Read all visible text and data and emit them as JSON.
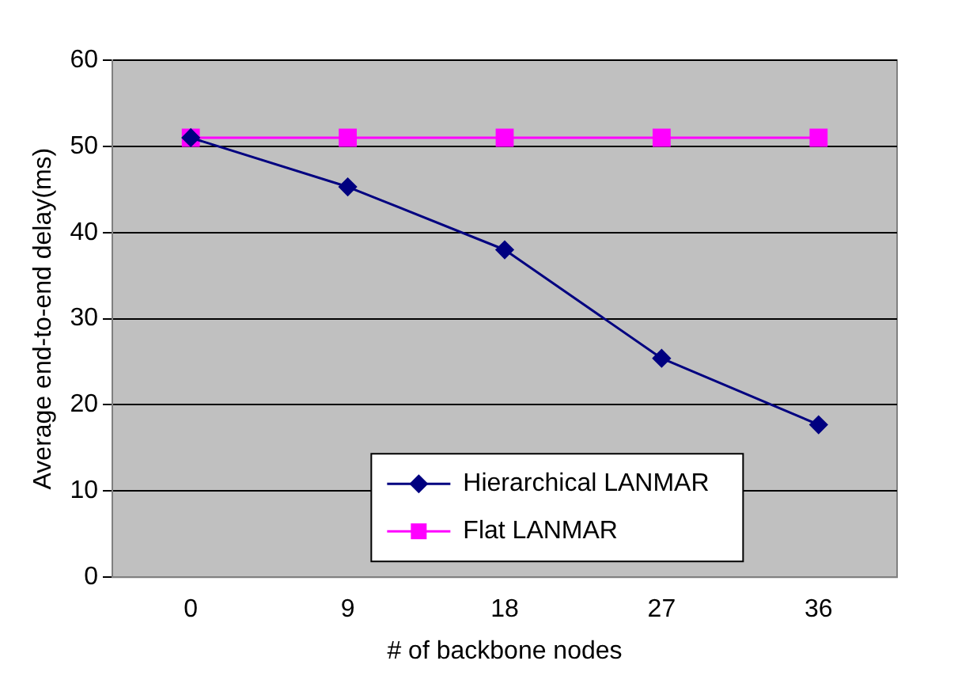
{
  "chart_data": {
    "type": "line",
    "xlabel": "# of backbone nodes",
    "ylabel": "Average end-to-end delay(ms)",
    "categories": [
      "0",
      "9",
      "18",
      "27",
      "36"
    ],
    "series": [
      {
        "name": "Hierarchical LANMAR",
        "color": "#000080",
        "values": [
          51,
          45.3,
          38,
          25.4,
          17.7
        ],
        "marker": "diamond"
      },
      {
        "name": "Flat LANMAR",
        "color": "#ff00ff",
        "values": [
          51,
          51,
          51,
          51,
          51
        ],
        "marker": "square"
      }
    ],
    "ylim": [
      0,
      60
    ],
    "yticks": [
      0,
      10,
      20,
      30,
      40,
      50,
      60
    ],
    "grid": "y",
    "legend": "bottom",
    "line_style": "solid"
  }
}
